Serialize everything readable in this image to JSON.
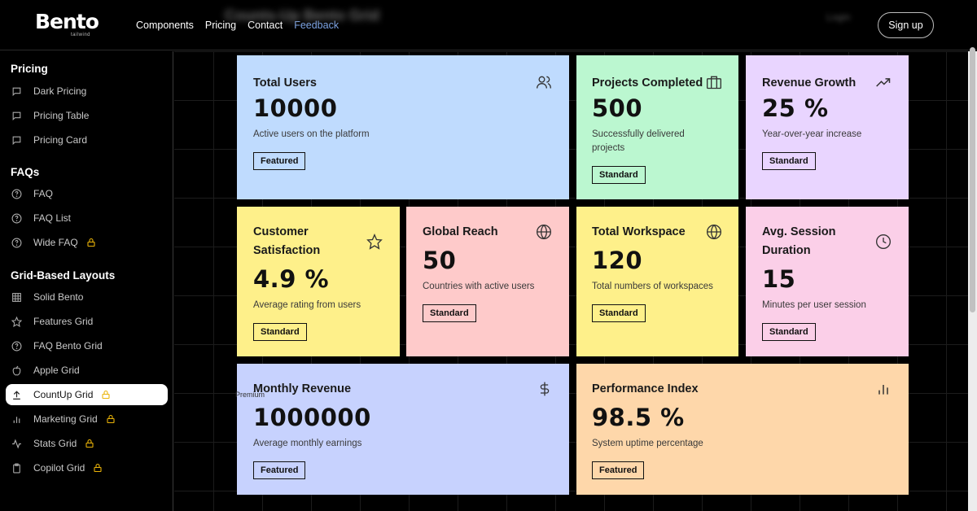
{
  "header": {
    "logo": "Bento",
    "logo_sub": "tailwind",
    "blurred_title": "Counts-Up Bento Grid",
    "blurred_link": "Login",
    "nav": [
      "Components",
      "Pricing",
      "Contact",
      "Feedback"
    ],
    "active_nav": "Feedback",
    "signup_label": "Sign up"
  },
  "sidebar": {
    "sections": [
      {
        "title": "Pricing",
        "items": [
          {
            "label": "Dark Pricing",
            "icon": "chat-icon"
          },
          {
            "label": "Pricing Table",
            "icon": "chat-icon"
          },
          {
            "label": "Pricing Card",
            "icon": "chat-icon"
          }
        ]
      },
      {
        "title": "FAQs",
        "items": [
          {
            "label": "FAQ",
            "icon": "help-circle-icon"
          },
          {
            "label": "FAQ List",
            "icon": "help-circle-icon"
          },
          {
            "label": "Wide FAQ",
            "icon": "help-circle-icon",
            "locked": true
          }
        ]
      },
      {
        "title": "Grid-Based Layouts",
        "items": [
          {
            "label": "Solid Bento",
            "icon": "grid-icon"
          },
          {
            "label": "Features Grid",
            "icon": "star-icon"
          },
          {
            "label": "FAQ Bento Grid",
            "icon": "help-circle-icon"
          },
          {
            "label": "Apple Grid",
            "icon": "apple-icon"
          },
          {
            "label": "CountUp Grid",
            "icon": "upload-icon",
            "locked": true,
            "active": true
          },
          {
            "label": "Marketing Grid",
            "icon": "bar-chart-icon",
            "locked": true
          },
          {
            "label": "Stats Grid",
            "icon": "activity-icon",
            "locked": true
          },
          {
            "label": "Copilot Grid",
            "icon": "clipboard-icon",
            "locked": true
          }
        ]
      }
    ]
  },
  "cards": [
    {
      "title": "Total Users",
      "value": "10000",
      "desc": "Active users on the platform",
      "badge": "Featured",
      "icon": "users-icon",
      "color": "#bfdbfe"
    },
    {
      "title": "Projects Completed",
      "value": "500",
      "desc": "Successfully delivered projects",
      "badge": "Standard",
      "icon": "briefcase-icon",
      "color": "#bbf7d0"
    },
    {
      "title": "Revenue Growth",
      "value": "25 %",
      "desc": "Year-over-year increase",
      "badge": "Standard",
      "icon": "trending-up-icon",
      "color": "#e9d5ff"
    },
    {
      "title": "Customer Satisfaction",
      "value": "4.9 %",
      "desc": "Average rating from users",
      "badge": "Standard",
      "icon": "star-icon",
      "color": "#fef08a"
    },
    {
      "title": "Global Reach",
      "value": "50",
      "desc": "Countries with active users",
      "badge": "Standard",
      "icon": "globe-icon",
      "color": "#fecaca"
    },
    {
      "title": "Total Workspace",
      "value": "120",
      "desc": "Total numbers of workspaces",
      "badge": "Standard",
      "icon": "globe-icon",
      "color": "#fef08a"
    },
    {
      "title": "Avg. Session Duration",
      "value": "15",
      "desc": "Minutes per user session",
      "badge": "Standard",
      "icon": "clock-icon",
      "color": "#fbcfe8"
    },
    {
      "title": "Monthly Revenue",
      "value": "1000000",
      "desc": "Average monthly earnings",
      "badge": "Featured",
      "icon": "dollar-icon",
      "color": "#c7d2fe"
    },
    {
      "title": "Performance Index",
      "value": "98.5 %",
      "desc": "System uptime percentage",
      "badge": "Featured",
      "icon": "bar-chart-icon",
      "color": "#fed7aa"
    }
  ],
  "premium_tag": "Premium",
  "colors": {
    "accent": "#3b82f6",
    "active_nav": "#7ea6e8",
    "lock": "#eab308"
  }
}
